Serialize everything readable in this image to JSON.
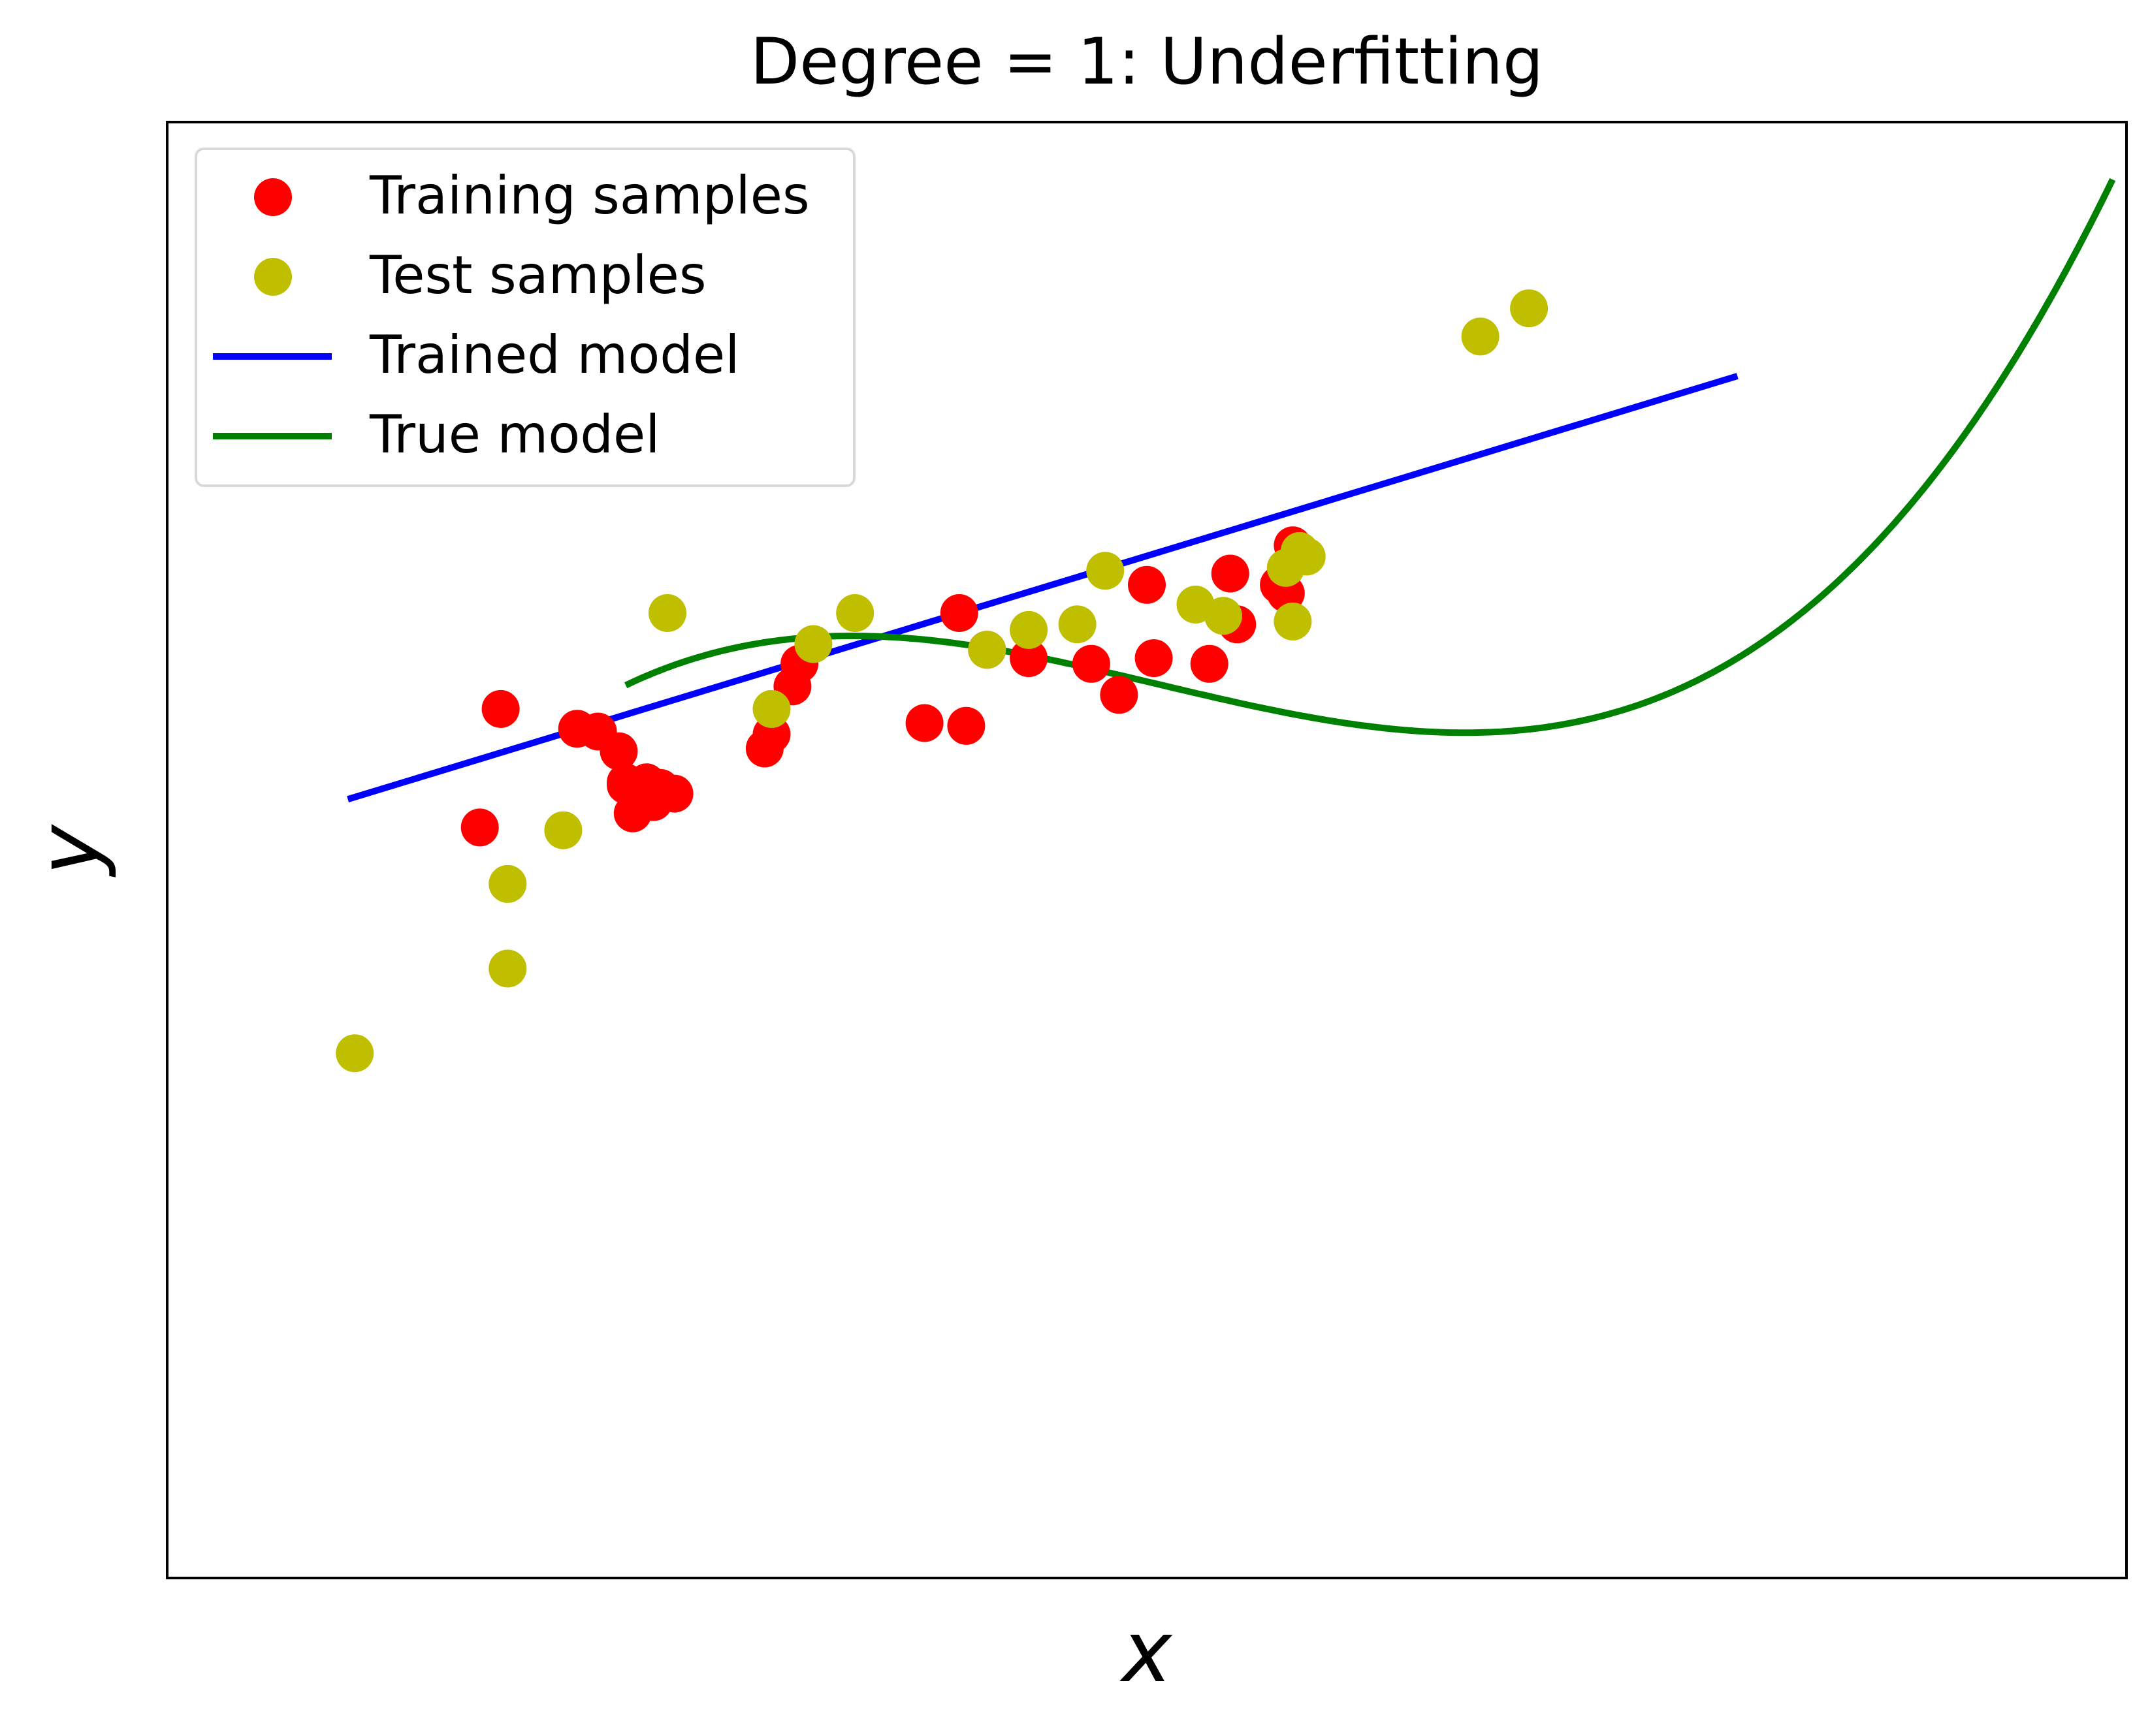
{
  "chart_data": {
    "type": "scatter",
    "title": "Degree = 1: Underfitting",
    "xlabel": "x",
    "ylabel": "y",
    "xlim": [
      -1.26,
      1.56
    ],
    "ylim": [
      -3.11,
      2.05
    ],
    "grid": false,
    "ticks_visible": false,
    "legend_position": "top-left",
    "series": [
      {
        "name": "Training samples",
        "kind": "scatter",
        "color": "#ff0000",
        "x": [
          -0.81,
          -0.78,
          -0.67,
          -0.64,
          -0.61,
          -0.6,
          -0.6,
          -0.59,
          -0.58,
          -0.56,
          -0.57,
          -0.55,
          -0.53,
          -0.4,
          -0.39,
          -0.36,
          -0.35,
          -0.17,
          -0.12,
          -0.11,
          -0.08,
          -0.02,
          0.07,
          0.11,
          0.15,
          0.16,
          0.24,
          0.28,
          0.27,
          0.35,
          0.36,
          0.34
        ],
        "y": [
          -0.45,
          -0.03,
          -0.1,
          -0.11,
          -0.18,
          -0.3,
          -0.29,
          -0.4,
          -0.34,
          -0.36,
          -0.29,
          -0.31,
          -0.33,
          -0.17,
          -0.12,
          0.05,
          0.13,
          -0.08,
          0.31,
          -0.09,
          0.18,
          0.15,
          0.13,
          0.02,
          0.41,
          0.15,
          0.13,
          0.27,
          0.45,
          0.38,
          0.55,
          0.41
        ]
      },
      {
        "name": "Test samples",
        "kind": "scatter",
        "color": "#bfbf00",
        "x": [
          -0.99,
          -0.77,
          -0.69,
          -0.77,
          -0.54,
          -0.39,
          -0.33,
          -0.27,
          -0.08,
          -0.02,
          0.05,
          0.09,
          0.22,
          0.26,
          0.35,
          0.36,
          0.37,
          0.38,
          0.63,
          0.7
        ],
        "y": [
          -1.25,
          -0.65,
          -0.46,
          -0.95,
          0.31,
          -0.03,
          0.2,
          0.31,
          0.18,
          0.25,
          0.27,
          0.46,
          0.34,
          0.3,
          0.47,
          0.28,
          0.53,
          0.51,
          1.29,
          1.39
        ]
      },
      {
        "name": "Trained model",
        "kind": "line",
        "color": "#0000ff",
        "x": [
          -1.0,
          1.0
        ],
        "y": [
          -0.35,
          1.15
        ]
      },
      {
        "name": "True model",
        "kind": "line",
        "color": "#008000",
        "function": "y = x^3 - 0.5x^2 - 0.5x + 0.15 (approximate cubic)",
        "x_range": [
          -0.6,
          1.54
        ]
      }
    ]
  }
}
